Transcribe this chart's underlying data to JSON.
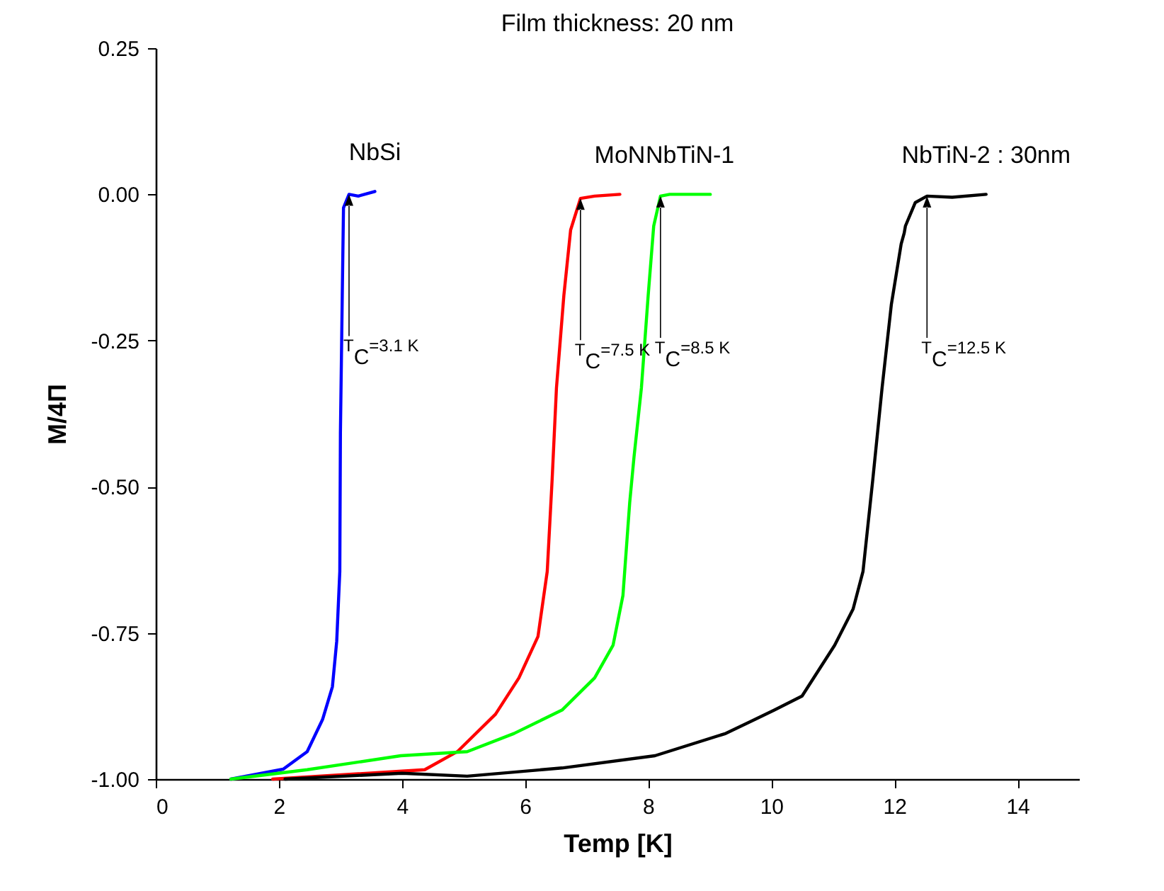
{
  "chart_data": {
    "type": "line",
    "title": "Film thickness: 20 nm",
    "xlabel": "Temp [K]",
    "ylabel": "M/4Π",
    "xlim": [
      0,
      15
    ],
    "xticks": [
      0,
      2,
      4,
      6,
      8,
      10,
      12,
      14
    ],
    "ylim": [
      -1,
      0.25
    ],
    "yticks": [
      {
        "value": -1,
        "label": "-1.00"
      },
      {
        "value": -0.75,
        "label": "-0.75"
      },
      {
        "value": -0.5,
        "label": "-0.50"
      },
      {
        "value": -0.25,
        "label": "-0.25"
      },
      {
        "value": 0,
        "label": "0.00"
      },
      {
        "value": 0.25,
        "label": "0.25"
      }
    ],
    "grid": false,
    "legend": false,
    "marker": "none",
    "line_style": "solid",
    "series": [
      {
        "name": "NbSi",
        "color": "#0000ff",
        "x": [
          1.22,
          2.07,
          2.46,
          2.71,
          2.87,
          2.94,
          2.99,
          3.0,
          3.03,
          3.05,
          3.14,
          3.29,
          3.56
        ],
        "values": [
          -1.0,
          -0.983,
          -0.953,
          -0.898,
          -0.842,
          -0.764,
          -0.645,
          -0.409,
          -0.173,
          -0.023,
          0.0,
          -0.003,
          0.005
        ]
      },
      {
        "name": "MoN",
        "color": "#ff0000",
        "x": [
          1.9,
          4.37,
          4.9,
          5.52,
          5.9,
          6.21,
          6.36,
          6.44,
          6.51,
          6.63,
          6.74,
          6.9,
          7.13,
          7.54
        ],
        "values": [
          -1.0,
          -0.984,
          -0.953,
          -0.889,
          -0.827,
          -0.756,
          -0.645,
          -0.487,
          -0.331,
          -0.173,
          -0.061,
          -0.007,
          -0.003,
          0.0
        ]
      },
      {
        "name": "NbTiN-1",
        "color": "#00ff00",
        "x": [
          1.22,
          2.46,
          3.98,
          5.06,
          5.82,
          6.6,
          7.13,
          7.43,
          7.59,
          7.7,
          7.77,
          7.89,
          8.0,
          8.09,
          8.2,
          8.35,
          9.01
        ],
        "values": [
          -1.0,
          -0.984,
          -0.96,
          -0.953,
          -0.922,
          -0.882,
          -0.827,
          -0.771,
          -0.686,
          -0.527,
          -0.449,
          -0.331,
          -0.173,
          -0.054,
          -0.003,
          0.0,
          0.0
        ]
      },
      {
        "name": "NbTiN-2 : 30nm",
        "color": "#000000",
        "x": [
          2.1,
          4.0,
          5.06,
          6.6,
          8.11,
          9.26,
          10.05,
          10.5,
          11.03,
          11.33,
          11.49,
          11.65,
          11.8,
          11.95,
          12.11,
          12.16,
          12.18,
          12.34,
          12.53,
          12.94,
          13.49
        ],
        "values": [
          -1.0,
          -0.99,
          -0.995,
          -0.981,
          -0.96,
          -0.922,
          -0.882,
          -0.858,
          -0.771,
          -0.709,
          -0.645,
          -0.487,
          -0.331,
          -0.189,
          -0.085,
          -0.066,
          -0.054,
          -0.014,
          -0.003,
          -0.005,
          0.0
        ]
      }
    ],
    "annotations": [
      "T$_{C}$=3.1 K",
      "T$_{C}$=7.5 K",
      "T$_{C}$=8.5 K",
      "T$_{C}$=12.5 K"
    ]
  }
}
